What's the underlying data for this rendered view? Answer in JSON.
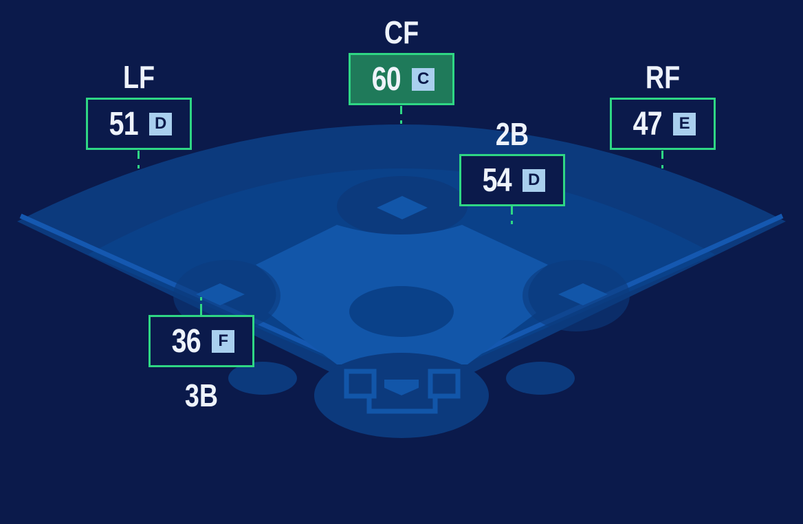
{
  "colors": {
    "background": "#0b1a4b",
    "outfield": "#0c3a7d",
    "infield_grass": "#0a4189",
    "dirt": "#1256a9",
    "accent_border": "#2fd784",
    "highlight_fill": "#1f7a5a",
    "grade_badge": "#a9cfee"
  },
  "positions": [
    {
      "id": "lf",
      "label": "LF",
      "value": "51",
      "grade": "D",
      "highlighted": false
    },
    {
      "id": "cf",
      "label": "CF",
      "value": "60",
      "grade": "C",
      "highlighted": true
    },
    {
      "id": "rf",
      "label": "RF",
      "value": "47",
      "grade": "E",
      "highlighted": false
    },
    {
      "id": "2b",
      "label": "2B",
      "value": "54",
      "grade": "D",
      "highlighted": false
    },
    {
      "id": "3b",
      "label": "3B",
      "value": "36",
      "grade": "F",
      "highlighted": false
    }
  ]
}
